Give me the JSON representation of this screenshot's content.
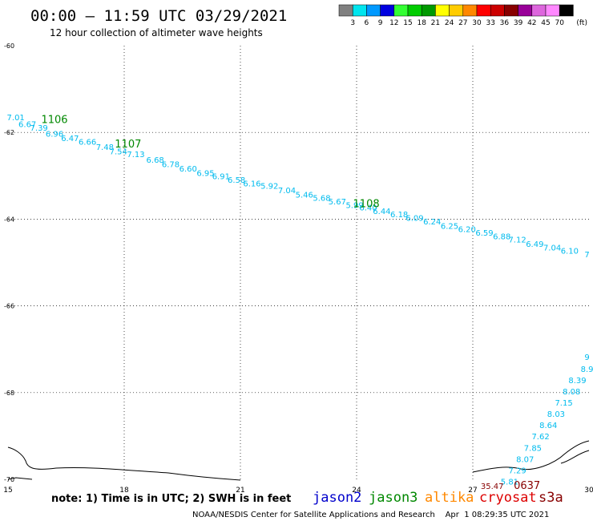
{
  "header": {
    "title": "00:00 – 11:59 UTC 03/29/2021",
    "subtitle": "12 hour collection of altimeter wave heights"
  },
  "color_legend": {
    "unit": "(ft)",
    "items": [
      {
        "label": "3",
        "color": "#808080"
      },
      {
        "label": "6",
        "color": "#00e5ee"
      },
      {
        "label": "9",
        "color": "#0099ff"
      },
      {
        "label": "12",
        "color": "#0000e0"
      },
      {
        "label": "15",
        "color": "#33ff33"
      },
      {
        "label": "18",
        "color": "#00cc00"
      },
      {
        "label": "21",
        "color": "#009900"
      },
      {
        "label": "24",
        "color": "#ffff00"
      },
      {
        "label": "27",
        "color": "#ffcc00"
      },
      {
        "label": "30",
        "color": "#ff8800"
      },
      {
        "label": "33",
        "color": "#ff0000"
      },
      {
        "label": "36",
        "color": "#cc0000"
      },
      {
        "label": "39",
        "color": "#880000"
      },
      {
        "label": "42",
        "color": "#990099"
      },
      {
        "label": "45",
        "color": "#dd66dd"
      },
      {
        "label": "70",
        "color": "#ff88ff"
      },
      {
        "label": "",
        "color": "#000000"
      }
    ]
  },
  "footer": {
    "note": "note: 1) Time is in UTC; 2) SWH is in feet",
    "credit": "NOAA/NESDIS Center for Satellite Applications and Research    Apr  1 08:29:35 UTC 2021",
    "satellites": [
      {
        "name": "jason2",
        "color": "#0000cc"
      },
      {
        "name": "jason3",
        "color": "#008800"
      },
      {
        "name": "altika",
        "color": "#ff8800"
      },
      {
        "name": "cryosat",
        "color": "#dd0000"
      },
      {
        "name": "s3a",
        "color": "#880000"
      }
    ]
  },
  "chart_data": {
    "type": "scatter",
    "xlim": [
      15,
      30
    ],
    "ylim": [
      -70,
      -60
    ],
    "x_ticks": [
      "15",
      "18",
      "21",
      "24",
      "27",
      "30"
    ],
    "y_ticks": [
      "-60",
      "-62",
      "-64",
      "-66",
      "-68",
      "-70"
    ],
    "grid": true,
    "series": [
      {
        "name": "",
        "color": "#00bbee",
        "points": [
          {
            "x": 15.2,
            "y": -61.72,
            "v": "7.01"
          },
          {
            "x": 15.5,
            "y": -61.88,
            "v": "6.67"
          },
          {
            "x": 15.8,
            "y": -61.96,
            "v": "7.39"
          },
          {
            "x": 16.2,
            "y": -62.1,
            "v": "6.96"
          },
          {
            "x": 16.6,
            "y": -62.2,
            "v": "6.47"
          },
          {
            "x": 17.05,
            "y": -62.28,
            "v": "6.66"
          },
          {
            "x": 17.5,
            "y": -62.4,
            "v": "7.48"
          },
          {
            "x": 17.85,
            "y": -62.5,
            "v": "7.54"
          },
          {
            "x": 18.3,
            "y": -62.57,
            "v": "7.13"
          },
          {
            "x": 18.8,
            "y": -62.7,
            "v": "6.68"
          },
          {
            "x": 19.2,
            "y": -62.8,
            "v": "6.78"
          },
          {
            "x": 19.65,
            "y": -62.9,
            "v": "6.60"
          },
          {
            "x": 20.1,
            "y": -63.0,
            "v": "6.95"
          },
          {
            "x": 20.5,
            "y": -63.08,
            "v": "6.91"
          },
          {
            "x": 20.9,
            "y": -63.16,
            "v": "6.58"
          },
          {
            "x": 21.3,
            "y": -63.24,
            "v": "6.16"
          },
          {
            "x": 21.75,
            "y": -63.3,
            "v": "5.92"
          },
          {
            "x": 22.2,
            "y": -63.4,
            "v": "7.04"
          },
          {
            "x": 22.65,
            "y": -63.5,
            "v": "5.46"
          },
          {
            "x": 23.1,
            "y": -63.58,
            "v": "5.68"
          },
          {
            "x": 23.5,
            "y": -63.66,
            "v": "5.67"
          },
          {
            "x": 23.95,
            "y": -63.74,
            "v": "5.99"
          },
          {
            "x": 24.3,
            "y": -63.8,
            "v": "6.40"
          },
          {
            "x": 24.65,
            "y": -63.88,
            "v": "6.44"
          },
          {
            "x": 25.1,
            "y": -63.96,
            "v": "6.18"
          },
          {
            "x": 25.5,
            "y": -64.04,
            "v": "6.09"
          },
          {
            "x": 25.95,
            "y": -64.12,
            "v": "6.24"
          },
          {
            "x": 26.4,
            "y": -64.22,
            "v": "6.25"
          },
          {
            "x": 26.85,
            "y": -64.3,
            "v": "6.20"
          },
          {
            "x": 27.3,
            "y": -64.38,
            "v": "6.59"
          },
          {
            "x": 27.75,
            "y": -64.46,
            "v": "6.88"
          },
          {
            "x": 28.15,
            "y": -64.54,
            "v": "7.12"
          },
          {
            "x": 28.6,
            "y": -64.64,
            "v": "6.49"
          },
          {
            "x": 29.05,
            "y": -64.72,
            "v": "7.04"
          },
          {
            "x": 29.5,
            "y": -64.8,
            "v": "6.10"
          },
          {
            "x": 29.95,
            "y": -64.88,
            "v": "7"
          },
          {
            "x": 29.95,
            "y": -67.25,
            "v": "9"
          },
          {
            "x": 29.95,
            "y": -67.52,
            "v": "8.9"
          },
          {
            "x": 29.7,
            "y": -67.78,
            "v": "8.39"
          },
          {
            "x": 29.55,
            "y": -68.04,
            "v": "8.08"
          },
          {
            "x": 29.35,
            "y": -68.3,
            "v": "7.15"
          },
          {
            "x": 29.15,
            "y": -68.56,
            "v": "8.03"
          },
          {
            "x": 28.95,
            "y": -68.82,
            "v": "8.64"
          },
          {
            "x": 28.75,
            "y": -69.08,
            "v": "7.62"
          },
          {
            "x": 28.55,
            "y": -69.34,
            "v": "7.85"
          },
          {
            "x": 28.35,
            "y": -69.6,
            "v": "8.07"
          },
          {
            "x": 28.15,
            "y": -69.86,
            "v": "7.29"
          },
          {
            "x": 27.95,
            "y": -70.12,
            "v": "5.81"
          }
        ]
      },
      {
        "name": "",
        "color": "#880000",
        "points": [
          {
            "x": 27.5,
            "y": -70.22,
            "v": "35.47"
          }
        ]
      }
    ],
    "pass_labels": [
      {
        "x": 16.2,
        "y": -61.78,
        "label": "1106",
        "color": "#008800"
      },
      {
        "x": 18.1,
        "y": -62.35,
        "label": "1107",
        "color": "#008800"
      },
      {
        "x": 24.25,
        "y": -63.72,
        "label": "1108",
        "color": "#008800"
      },
      {
        "x": 28.4,
        "y": -70.22,
        "label": "0637",
        "color": "#880000"
      }
    ]
  }
}
